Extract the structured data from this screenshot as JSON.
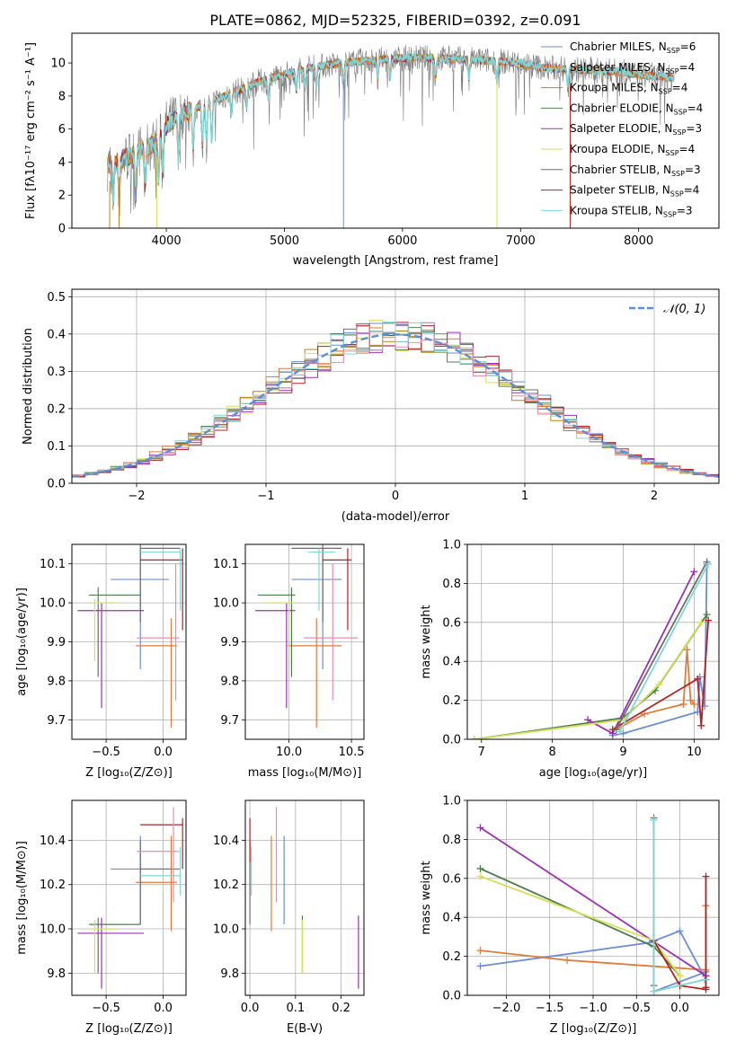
{
  "figure_title": "PLATE=0862, MJD=52325, FIBERID=0392, z=0.091",
  "colors": {
    "Chabrier MILES": "#6b8ed6",
    "Salpeter MILES": "#e07b39",
    "Kroupa MILES": "#b8860b",
    "Chabrier ELODIE": "#4f7f4f",
    "Salpeter ELODIE": "#9b30b0",
    "Kroupa ELODIE": "#d4e157",
    "Chabrier STELIB": "#6e6e6e",
    "Salpeter STELIB": "#b22222",
    "Kroupa STELIB": "#7fd6d6",
    "pink": "#e88ab0",
    "normal_curve": "#5b8fd9"
  },
  "chart_data": [
    {
      "id": "spectrum",
      "type": "line",
      "title": "PLATE=0862, MJD=52325, FIBERID=0392, z=0.091",
      "xlabel": "wavelength [Angstrom, rest frame]",
      "ylabel": "Flux [fλ10⁻¹⁷ erg cm⁻² s⁻¹ A⁻¹]",
      "xlim": [
        3200,
        8680
      ],
      "ylim": [
        0,
        11.8
      ],
      "xticks": [
        4000,
        5000,
        6000,
        7000,
        8000
      ],
      "xtick_labels": [
        "4000",
        "5000",
        "6000",
        "7000",
        "8000"
      ],
      "yticks": [
        0,
        2,
        4,
        6,
        8,
        10
      ],
      "ytick_labels": [
        "0",
        "2",
        "4",
        "6",
        "8",
        "10"
      ],
      "grid": false,
      "legend_position": "right",
      "continuum": {
        "wavelength": [
          3500,
          3700,
          3900,
          4000,
          4100,
          4300,
          4500,
          4800,
          5000,
          5200,
          5500,
          5800,
          6000,
          6300,
          6600,
          6800,
          7000,
          7200,
          7500,
          7800,
          8000,
          8300
        ],
        "flux": [
          3.8,
          4.4,
          5.1,
          6.2,
          6.8,
          7.4,
          8.0,
          8.9,
          9.3,
          9.7,
          10.0,
          10.2,
          10.3,
          10.3,
          10.2,
          10.1,
          10.0,
          9.7,
          9.6,
          9.5,
          9.3,
          9.1
        ]
      },
      "absorption_lines": [
        3550,
        3600,
        3740,
        3820,
        3934,
        3969,
        4101,
        4227,
        4305,
        4340,
        4384,
        4550,
        4680,
        4861,
        5100,
        5175,
        5270,
        5500,
        5790,
        5895,
        6280,
        6563,
        6800,
        7400
      ],
      "legend": [
        {
          "label": "Chabrier MILES, N",
          "sub": "SSP",
          "suffix": "=6",
          "color_key": "Chabrier MILES"
        },
        {
          "label": "Salpeter MILES, N",
          "sub": "SSP",
          "suffix": "=4",
          "color_key": "Salpeter MILES"
        },
        {
          "label": "Kroupa MILES, N",
          "sub": "SSP",
          "suffix": "=4",
          "color_key": "Kroupa MILES"
        },
        {
          "label": "Chabrier ELODIE, N",
          "sub": "SSP",
          "suffix": "=4",
          "color_key": "Chabrier ELODIE"
        },
        {
          "label": "Salpeter ELODIE, N",
          "sub": "SSP",
          "suffix": "=3",
          "color_key": "Salpeter ELODIE"
        },
        {
          "label": "Kroupa ELODIE, N",
          "sub": "SSP",
          "suffix": "=4",
          "color_key": "Kroupa ELODIE"
        },
        {
          "label": "Chabrier STELIB, N",
          "sub": "SSP",
          "suffix": "=3",
          "color_key": "Chabrier STELIB"
        },
        {
          "label": "Salpeter STELIB, N",
          "sub": "SSP",
          "suffix": "=4",
          "color_key": "Salpeter STELIB"
        },
        {
          "label": "Kroupa STELIB, N",
          "sub": "SSP",
          "suffix": "=3",
          "color_key": "Kroupa STELIB"
        }
      ]
    },
    {
      "id": "residuals",
      "type": "histogram",
      "xlabel": "(data-model)/error",
      "ylabel": "Normed distribution",
      "xlim": [
        -2.5,
        2.5
      ],
      "ylim": [
        0,
        0.52
      ],
      "xticks": [
        -2,
        -1,
        0,
        1,
        2
      ],
      "xtick_labels": [
        "−2",
        "−1",
        "0",
        "1",
        "2"
      ],
      "yticks": [
        0,
        0.1,
        0.2,
        0.3,
        0.4,
        0.5
      ],
      "ytick_labels": [
        "0.0",
        "0.1",
        "0.2",
        "0.3",
        "0.4",
        "0.5"
      ],
      "grid": true,
      "legend_position": "top-right",
      "legend_label": "𝒩(0, 1)",
      "bin_width": 0.1
    },
    {
      "id": "age_vs_Z",
      "type": "errorbar",
      "xlabel": "Z [log₁₀(Z/Z⊙)]",
      "ylabel": "age  [log₁₀(age/yr)]",
      "xlim": [
        -0.8,
        0.2
      ],
      "ylim": [
        9.65,
        10.15
      ],
      "xticks": [
        -0.5,
        0.0
      ],
      "xtick_labels": [
        "−0.5",
        "0.0"
      ],
      "yticks": [
        9.7,
        9.8,
        9.9,
        10.0,
        10.1
      ],
      "ytick_labels": [
        "9.7",
        "9.8",
        "9.9",
        "10.0",
        "10.1"
      ],
      "grid": true,
      "points": [
        {
          "x": -0.2,
          "y": 10.06,
          "xlo": -0.46,
          "xhi": 0.05,
          "ylo": 9.83,
          "yhi": 10.14,
          "color_key": "Chabrier MILES"
        },
        {
          "x": 0.07,
          "y": 9.89,
          "xlo": -0.24,
          "xhi": 0.12,
          "ylo": 9.68,
          "yhi": 9.96,
          "color_key": "Salpeter MILES"
        },
        {
          "x": -0.2,
          "y": 10.14,
          "xlo": -0.2,
          "xhi": 0.15,
          "ylo": 9.95,
          "yhi": 10.15,
          "color_key": "Chabrier STELIB"
        },
        {
          "x": -0.57,
          "y": 10.02,
          "xlo": -0.65,
          "xhi": -0.2,
          "ylo": 9.81,
          "yhi": 10.04,
          "color_key": "Chabrier ELODIE"
        },
        {
          "x": -0.54,
          "y": 9.98,
          "xlo": -0.75,
          "xhi": -0.17,
          "ylo": 9.73,
          "yhi": 10.0,
          "color_key": "Salpeter ELODIE"
        },
        {
          "x": -0.6,
          "y": 10.0,
          "xlo": -0.64,
          "xhi": -0.4,
          "ylo": 9.85,
          "yhi": 10.01,
          "color_key": "Kroupa ELODIE"
        },
        {
          "x": 0.17,
          "y": 10.11,
          "xlo": -0.2,
          "xhi": 0.17,
          "ylo": 9.93,
          "yhi": 10.14,
          "color_key": "Salpeter STELIB"
        },
        {
          "x": 0.15,
          "y": 10.13,
          "xlo": -0.2,
          "xhi": 0.15,
          "ylo": 9.98,
          "yhi": 10.14,
          "color_key": "Kroupa STELIB"
        },
        {
          "x": 0.11,
          "y": 9.91,
          "xlo": -0.23,
          "xhi": 0.14,
          "ylo": 9.75,
          "yhi": 10.1,
          "color_key": "pink"
        }
      ]
    },
    {
      "id": "age_vs_mass",
      "type": "errorbar",
      "xlabel": "mass [log₁₀(M/M⊙)]",
      "ylabel": "",
      "xlim": [
        9.65,
        10.6
      ],
      "ylim": [
        9.65,
        10.15
      ],
      "xticks": [
        10.0,
        10.5
      ],
      "xtick_labels": [
        "10.0",
        "10.5"
      ],
      "yticks": [
        9.7,
        9.8,
        9.9,
        10.0,
        10.1
      ],
      "ytick_labels": [
        "9.7",
        "9.8",
        "9.9",
        "10.0",
        "10.1"
      ],
      "grid": true,
      "points": [
        {
          "x": 10.27,
          "y": 10.06,
          "xlo": 10.02,
          "xhi": 10.42,
          "ylo": 9.83,
          "yhi": 10.14,
          "color_key": "Chabrier MILES"
        },
        {
          "x": 10.22,
          "y": 9.89,
          "xlo": 9.99,
          "xhi": 10.42,
          "ylo": 9.68,
          "yhi": 9.96,
          "color_key": "Salpeter MILES"
        },
        {
          "x": 10.27,
          "y": 10.14,
          "xlo": 10.02,
          "xhi": 10.42,
          "ylo": 9.95,
          "yhi": 10.15,
          "color_key": "Chabrier STELIB"
        },
        {
          "x": 10.02,
          "y": 10.02,
          "xlo": 9.75,
          "xhi": 10.05,
          "ylo": 9.81,
          "yhi": 10.04,
          "color_key": "Chabrier ELODIE"
        },
        {
          "x": 9.98,
          "y": 9.98,
          "xlo": 9.73,
          "xhi": 10.05,
          "ylo": 9.73,
          "yhi": 10.0,
          "color_key": "Salpeter ELODIE"
        },
        {
          "x": 10.0,
          "y": 10.0,
          "xlo": 9.8,
          "xhi": 10.05,
          "ylo": 9.85,
          "yhi": 10.01,
          "color_key": "Kroupa ELODIE"
        },
        {
          "x": 10.47,
          "y": 10.11,
          "xlo": 10.27,
          "xhi": 10.5,
          "ylo": 9.93,
          "yhi": 10.14,
          "color_key": "Salpeter STELIB"
        },
        {
          "x": 10.24,
          "y": 10.13,
          "xlo": 10.15,
          "xhi": 10.37,
          "ylo": 9.98,
          "yhi": 10.14,
          "color_key": "Kroupa STELIB"
        },
        {
          "x": 10.35,
          "y": 9.91,
          "xlo": 10.12,
          "xhi": 10.55,
          "ylo": 9.75,
          "yhi": 10.1,
          "color_key": "pink"
        }
      ]
    },
    {
      "id": "weight_vs_age",
      "type": "line",
      "xlabel": "age  [log₁₀(age/yr)]",
      "ylabel": "mass weight",
      "xlim": [
        6.8,
        10.35
      ],
      "ylim": [
        0,
        1.0
      ],
      "xticks": [
        7,
        8,
        9,
        10
      ],
      "xtick_labels": [
        "7",
        "8",
        "9",
        "10"
      ],
      "yticks": [
        0,
        0.2,
        0.4,
        0.6,
        0.8,
        1.0
      ],
      "ytick_labels": [
        "0.0",
        "0.2",
        "0.4",
        "0.6",
        "0.8",
        "1.0"
      ],
      "grid": true,
      "series": [
        {
          "color_key": "Chabrier MILES",
          "x": [
            8.85,
            9.0,
            10.05,
            10.08,
            10.15,
            10.18
          ],
          "y": [
            0.02,
            0.03,
            0.14,
            0.32,
            0.17,
            0.9
          ]
        },
        {
          "color_key": "Salpeter MILES",
          "x": [
            8.9,
            9.3,
            9.85,
            9.9,
            9.95,
            10.0
          ],
          "y": [
            0.05,
            0.13,
            0.18,
            0.46,
            0.2,
            0.18
          ]
        },
        {
          "color_key": "Chabrier ELODIE",
          "x": [
            6.9,
            9.0,
            9.45,
            10.18
          ],
          "y": [
            0.0,
            0.11,
            0.25,
            0.64
          ]
        },
        {
          "color_key": "Salpeter ELODIE",
          "x": [
            8.5,
            8.85,
            10.0
          ],
          "y": [
            0.1,
            0.03,
            0.86
          ]
        },
        {
          "color_key": "Kroupa ELODIE",
          "x": [
            6.9,
            9.0,
            9.5,
            10.1
          ],
          "y": [
            0.0,
            0.1,
            0.28,
            0.6
          ]
        },
        {
          "color_key": "Salpeter STELIB",
          "x": [
            8.85,
            10.05,
            10.1,
            10.2
          ],
          "y": [
            0.05,
            0.31,
            0.07,
            0.61
          ]
        },
        {
          "color_key": "Chabrier STELIB",
          "x": [
            8.9,
            10.18
          ],
          "y": [
            0.05,
            0.91
          ]
        },
        {
          "color_key": "Kroupa STELIB",
          "x": [
            8.95,
            10.2
          ],
          "y": [
            0.04,
            0.9
          ]
        }
      ]
    },
    {
      "id": "mass_vs_Z",
      "type": "errorbar",
      "xlabel": "Z [log₁₀(Z/Z⊙)]",
      "ylabel": "mass [log₁₀(M/M⊙)]",
      "xlim": [
        -0.8,
        0.2
      ],
      "ylim": [
        9.7,
        10.58
      ],
      "xticks": [
        -0.5,
        0.0
      ],
      "xtick_labels": [
        "−0.5",
        "0.0"
      ],
      "yticks": [
        9.8,
        10.0,
        10.2,
        10.4
      ],
      "ytick_labels": [
        "9.8",
        "10.0",
        "10.2",
        "10.4"
      ],
      "grid": true,
      "points": [
        {
          "x": -0.2,
          "y": 10.27,
          "xlo": -0.46,
          "xhi": 0.05,
          "ylo": 10.02,
          "yhi": 10.42,
          "color_key": "Chabrier MILES"
        },
        {
          "x": 0.07,
          "y": 10.21,
          "xlo": -0.24,
          "xhi": 0.12,
          "ylo": 9.99,
          "yhi": 10.42,
          "color_key": "Salpeter MILES"
        },
        {
          "x": -0.2,
          "y": 10.27,
          "xlo": -0.2,
          "xhi": 0.15,
          "ylo": 10.02,
          "yhi": 10.4,
          "color_key": "Chabrier STELIB"
        },
        {
          "x": -0.57,
          "y": 10.02,
          "xlo": -0.65,
          "xhi": -0.2,
          "ylo": 9.8,
          "yhi": 10.05,
          "color_key": "Chabrier ELODIE"
        },
        {
          "x": -0.54,
          "y": 9.98,
          "xlo": -0.75,
          "xhi": -0.17,
          "ylo": 9.73,
          "yhi": 10.05,
          "color_key": "Salpeter ELODIE"
        },
        {
          "x": -0.6,
          "y": 10.0,
          "xlo": -0.64,
          "xhi": -0.4,
          "ylo": 9.8,
          "yhi": 10.04,
          "color_key": "Kroupa ELODIE"
        },
        {
          "x": 0.17,
          "y": 10.47,
          "xlo": -0.2,
          "xhi": 0.17,
          "ylo": 10.27,
          "yhi": 10.5,
          "color_key": "Salpeter STELIB"
        },
        {
          "x": 0.15,
          "y": 10.24,
          "xlo": -0.2,
          "xhi": 0.15,
          "ylo": 10.15,
          "yhi": 10.37,
          "color_key": "Kroupa STELIB"
        },
        {
          "x": 0.09,
          "y": 10.35,
          "xlo": -0.23,
          "xhi": 0.14,
          "ylo": 10.12,
          "yhi": 10.55,
          "color_key": "pink"
        }
      ]
    },
    {
      "id": "mass_vs_ebv",
      "type": "errorbar",
      "xlabel": "E(B-V)",
      "ylabel": "",
      "xlim": [
        -0.01,
        0.25
      ],
      "ylim": [
        9.7,
        10.58
      ],
      "xticks": [
        0.0,
        0.1,
        0.2
      ],
      "xtick_labels": [
        "0.0",
        "0.1",
        "0.2"
      ],
      "yticks": [
        9.8,
        10.0,
        10.2,
        10.4
      ],
      "ytick_labels": [
        "9.8",
        "10.0",
        "10.2",
        "10.4"
      ],
      "grid": true,
      "points": [
        {
          "x": 0.075,
          "y": 10.27,
          "xlo": 0.075,
          "xhi": 0.075,
          "ylo": 10.02,
          "yhi": 10.42,
          "color_key": "Chabrier MILES"
        },
        {
          "x": 0.047,
          "y": 10.21,
          "xlo": 0.047,
          "xhi": 0.047,
          "ylo": 9.99,
          "yhi": 10.42,
          "color_key": "Salpeter MILES"
        },
        {
          "x": 0.0,
          "y": 10.27,
          "xlo": 0.0,
          "xhi": 0.0,
          "ylo": 10.02,
          "yhi": 10.4,
          "color_key": "Chabrier STELIB"
        },
        {
          "x": 0.115,
          "y": 10.02,
          "xlo": 0.115,
          "xhi": 0.115,
          "ylo": 9.8,
          "yhi": 10.06,
          "color_key": "Chabrier ELODIE"
        },
        {
          "x": 0.238,
          "y": 9.98,
          "xlo": 0.238,
          "xhi": 0.238,
          "ylo": 9.73,
          "yhi": 10.06,
          "color_key": "Salpeter ELODIE"
        },
        {
          "x": 0.115,
          "y": 10.0,
          "xlo": 0.115,
          "xhi": 0.115,
          "ylo": 9.8,
          "yhi": 10.04,
          "color_key": "Kroupa ELODIE"
        },
        {
          "x": 0.0,
          "y": 10.47,
          "xlo": 0.0,
          "xhi": 0.0,
          "ylo": 10.3,
          "yhi": 10.5,
          "color_key": "Salpeter STELIB"
        },
        {
          "x": 0.003,
          "y": 10.24,
          "xlo": 0.003,
          "xhi": 0.003,
          "ylo": 10.15,
          "yhi": 10.37,
          "color_key": "Kroupa STELIB"
        },
        {
          "x": 0.058,
          "y": 10.35,
          "xlo": 0.058,
          "xhi": 0.058,
          "ylo": 10.12,
          "yhi": 10.55,
          "color_key": "pink"
        }
      ]
    },
    {
      "id": "weight_vs_Z",
      "type": "line",
      "xlabel": "Z [log₁₀(Z/Z⊙)]",
      "ylabel": "mass weight",
      "xlim": [
        -2.45,
        0.45
      ],
      "ylim": [
        0,
        1.0
      ],
      "xticks": [
        -2.0,
        -1.5,
        -1.0,
        -0.5,
        0.0
      ],
      "xtick_labels": [
        "−2.0",
        "−1.5",
        "−1.0",
        "−0.5",
        "0.0"
      ],
      "yticks": [
        0,
        0.2,
        0.4,
        0.6,
        0.8,
        1.0
      ],
      "ytick_labels": [
        "0.0",
        "0.2",
        "0.4",
        "0.6",
        "0.8",
        "1.0"
      ],
      "grid": true,
      "series": [
        {
          "color_key": "Chabrier MILES",
          "x": [
            -2.3,
            -0.35,
            0.0,
            0.3,
            0.3,
            -0.3
          ],
          "y": [
            0.15,
            0.27,
            0.33,
            0.08,
            0.12,
            0.02
          ]
        },
        {
          "color_key": "Salpeter MILES",
          "x": [
            -2.3,
            -1.3,
            0.3,
            0.3
          ],
          "y": [
            0.23,
            0.18,
            0.13,
            0.46
          ]
        },
        {
          "color_key": "Chabrier ELODIE",
          "x": [
            -2.3,
            -0.3,
            0.0
          ],
          "y": [
            0.65,
            0.25,
            0.1
          ]
        },
        {
          "color_key": "Salpeter ELODIE",
          "x": [
            -2.3,
            0.3
          ],
          "y": [
            0.86,
            0.1
          ]
        },
        {
          "color_key": "Kroupa ELODIE",
          "x": [
            -2.3,
            -0.3,
            0.0
          ],
          "y": [
            0.61,
            0.28,
            0.1
          ]
        },
        {
          "color_key": "Salpeter STELIB",
          "x": [
            -0.3,
            0.0,
            0.3,
            0.3,
            0.3
          ],
          "y": [
            0.28,
            0.05,
            0.03,
            0.61,
            0.04
          ]
        },
        {
          "color_key": "Chabrier STELIB",
          "x": [
            -0.3,
            -0.3
          ],
          "y": [
            0.91,
            0.05
          ]
        },
        {
          "color_key": "Kroupa STELIB",
          "x": [
            -0.3,
            -0.3,
            0.28
          ],
          "y": [
            0.9,
            0.02,
            0.08
          ]
        }
      ]
    }
  ]
}
